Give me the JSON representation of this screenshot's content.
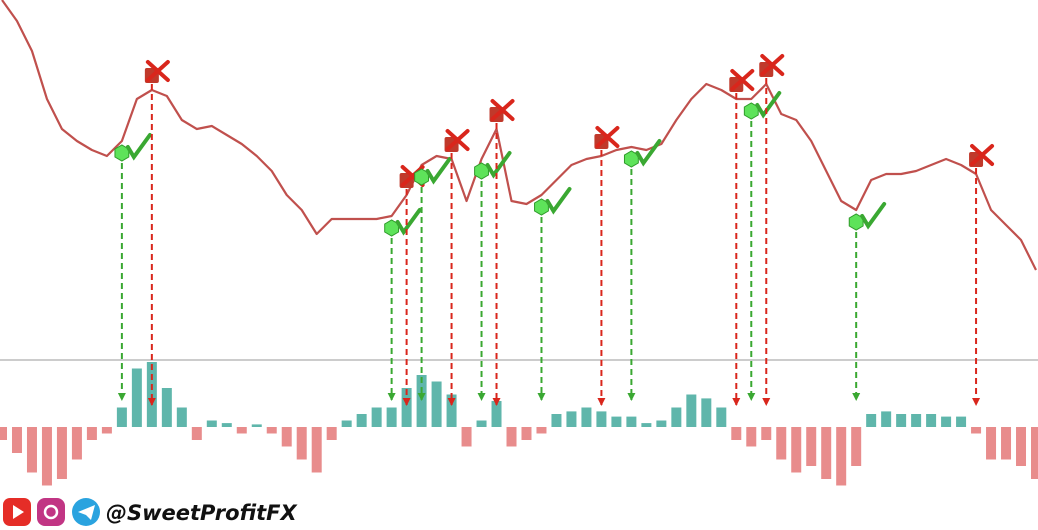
{
  "chart_data": {
    "type": "line",
    "series": [
      {
        "color": "#c0504d",
        "values": [
          100,
          93,
          83,
          67,
          57,
          53,
          50,
          48,
          53,
          67,
          70,
          68,
          60,
          57,
          58,
          55,
          52,
          48,
          43,
          35,
          30,
          22,
          27,
          27,
          27,
          27,
          28,
          35,
          45,
          48,
          47,
          33,
          47,
          57,
          33,
          32,
          35,
          40,
          45,
          47,
          48,
          50,
          51,
          50,
          52,
          60,
          67,
          72,
          70,
          67,
          67,
          72,
          62,
          60,
          53,
          43,
          33,
          30,
          40,
          42,
          42,
          43,
          45,
          47,
          45,
          42,
          30,
          25,
          20,
          10
        ]
      }
    ],
    "ylim": [
      0,
      100
    ],
    "oscillator": {
      "values": [
        -10,
        -20,
        -35,
        -45,
        -40,
        -25,
        -10,
        -5,
        15,
        45,
        50,
        30,
        15,
        -10,
        5,
        3,
        -5,
        2,
        -5,
        -15,
        -25,
        -35,
        -10,
        5,
        10,
        15,
        15,
        30,
        40,
        35,
        25,
        -15,
        5,
        20,
        -15,
        -10,
        -5,
        10,
        12,
        15,
        12,
        8,
        8,
        3,
        5,
        15,
        25,
        22,
        15,
        -10,
        -15,
        -10,
        -25,
        -35,
        -30,
        -40,
        -45,
        -30,
        10,
        12,
        10,
        10,
        10,
        8,
        8,
        -5,
        -25,
        -25,
        -30,
        -40
      ],
      "positive_color": "#2a9d8f",
      "negative_color": "#e06666"
    },
    "y2lim": [
      -50,
      50
    ],
    "signals": [
      {
        "index": 8,
        "kind": "buy"
      },
      {
        "index": 10,
        "kind": "sell"
      },
      {
        "index": 26,
        "kind": "buy"
      },
      {
        "index": 27,
        "kind": "sell"
      },
      {
        "index": 28,
        "kind": "buy"
      },
      {
        "index": 30,
        "kind": "sell"
      },
      {
        "index": 32,
        "kind": "buy"
      },
      {
        "index": 33,
        "kind": "sell"
      },
      {
        "index": 36,
        "kind": "buy"
      },
      {
        "index": 40,
        "kind": "sell"
      },
      {
        "index": 42,
        "kind": "buy"
      },
      {
        "index": 49,
        "kind": "sell"
      },
      {
        "index": 50,
        "kind": "buy"
      },
      {
        "index": 51,
        "kind": "sell"
      },
      {
        "index": 57,
        "kind": "buy"
      },
      {
        "index": 65,
        "kind": "sell"
      }
    ],
    "buy_color": "#3aa832",
    "sell_color": "#d9261c",
    "handle": "@SweetProfitFX"
  }
}
